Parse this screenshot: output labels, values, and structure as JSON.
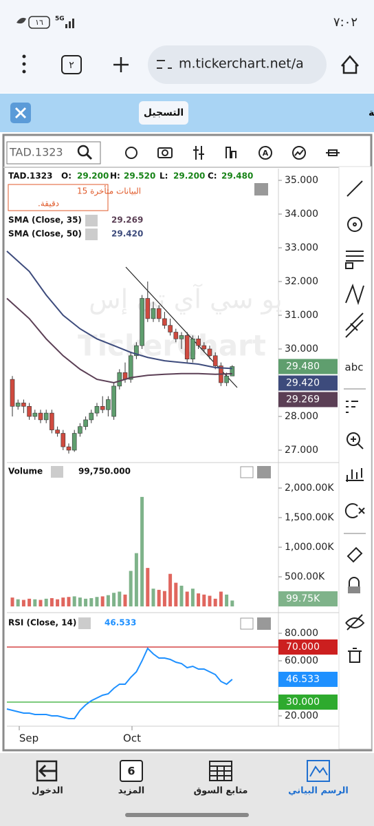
{
  "status_bar": {
    "time": "٧:٠٢",
    "battery": "١٦",
    "network": "5G"
  },
  "browser": {
    "tab_count": "٢",
    "url": "m.tickerchart.net/a"
  },
  "banner": {
    "message": "سجل مجانا لكي تحفظ رسومك الفنية",
    "button": "التسجيل"
  },
  "toolbar": {
    "symbol": "TAD.1323",
    "abc": "abc"
  },
  "watermark": [
    "يو سي آي تي إس",
    "TickerChart"
  ],
  "price_pane": {
    "symbol": "TAD.1323",
    "open_label": "O:",
    "open": "29.200",
    "high_label": "H:",
    "high": "29.520",
    "low_label": "L:",
    "low": "29.200",
    "close_label": "C:",
    "close": "29.480",
    "delay_notice": [
      "البيانات متأخرة 15",
      "دقيقة."
    ],
    "sma35_label": "SMA  (Close, 35)",
    "sma35_value": "29.269",
    "sma50_label": "SMA  (Close, 50)",
    "sma50_value": "29.420",
    "ticks": [
      {
        "value": 35,
        "label": "35.000"
      },
      {
        "value": 34,
        "label": "34.000"
      },
      {
        "value": 33,
        "label": "33.000"
      },
      {
        "value": 32,
        "label": "32.000"
      },
      {
        "value": 31,
        "label": "31.000"
      },
      {
        "value": 30,
        "label": "30.000"
      },
      {
        "value": 28,
        "label": "28.000"
      },
      {
        "value": 27,
        "label": "27.000"
      }
    ],
    "tags": [
      {
        "value": 29.48,
        "label": "29.480",
        "color": "#5f9e6e"
      },
      {
        "value": 29.42,
        "label": "29.420",
        "color": "#3d4b7c"
      },
      {
        "value": 29.269,
        "label": "29.269",
        "color": "#5b3f55"
      }
    ],
    "candles": [
      [
        29.1,
        29.2,
        28.0,
        28.3
      ],
      [
        28.3,
        28.5,
        28.2,
        28.4
      ],
      [
        28.4,
        28.5,
        28.1,
        28.3
      ],
      [
        28.3,
        28.4,
        27.9,
        28.0
      ],
      [
        28.0,
        28.2,
        27.9,
        28.1
      ],
      [
        28.1,
        28.2,
        27.8,
        27.9
      ],
      [
        27.9,
        28.2,
        27.8,
        28.1
      ],
      [
        28.1,
        28.2,
        27.5,
        27.6
      ],
      [
        27.6,
        27.7,
        27.4,
        27.5
      ],
      [
        27.5,
        27.6,
        27.0,
        27.1
      ],
      [
        27.1,
        27.2,
        26.9,
        27.0
      ],
      [
        27.0,
        27.6,
        26.95,
        27.5
      ],
      [
        27.5,
        27.8,
        27.4,
        27.7
      ],
      [
        27.7,
        28.0,
        27.6,
        27.9
      ],
      [
        27.9,
        28.2,
        27.8,
        28.1
      ],
      [
        28.1,
        28.4,
        28.0,
        28.3
      ],
      [
        28.3,
        28.6,
        28.1,
        28.2
      ],
      [
        28.2,
        28.6,
        28.0,
        28.5
      ],
      [
        28.0,
        29.0,
        27.9,
        28.9
      ],
      [
        28.9,
        29.4,
        28.8,
        29.3
      ],
      [
        29.3,
        29.6,
        29.0,
        29.1
      ],
      [
        29.1,
        29.9,
        29.0,
        29.8
      ],
      [
        29.8,
        30.2,
        29.7,
        30.1
      ],
      [
        30.1,
        31.6,
        30.0,
        31.5
      ],
      [
        31.5,
        32.0,
        30.8,
        30.9
      ],
      [
        30.9,
        31.4,
        30.8,
        31.2
      ],
      [
        31.2,
        31.3,
        30.8,
        30.9
      ],
      [
        30.9,
        31.1,
        30.6,
        30.7
      ],
      [
        30.7,
        30.9,
        30.4,
        30.5
      ],
      [
        30.5,
        30.6,
        30.2,
        30.3
      ],
      [
        30.3,
        30.5,
        30.0,
        30.4
      ],
      [
        30.4,
        30.5,
        29.6,
        29.7
      ],
      [
        29.7,
        30.4,
        29.6,
        30.3
      ],
      [
        30.3,
        30.4,
        30.0,
        30.1
      ],
      [
        30.1,
        30.2,
        29.9,
        30.0
      ],
      [
        30.0,
        30.1,
        29.7,
        29.8
      ],
      [
        29.8,
        29.9,
        29.4,
        29.5
      ],
      [
        29.5,
        29.6,
        28.9,
        29.0
      ],
      [
        29.0,
        29.3,
        28.9,
        29.2
      ],
      [
        29.2,
        29.52,
        29.2,
        29.48
      ]
    ],
    "sma35": {
      "color": "#5b3f55",
      "values": [
        31.5,
        30.9,
        30.3,
        29.8,
        29.4,
        29.1,
        29.0,
        29.15,
        29.22,
        29.25,
        29.27,
        29.27,
        29.25,
        29.269
      ]
    },
    "sma50": {
      "color": "#3d4b7c",
      "values": [
        32.9,
        32.3,
        31.6,
        31.0,
        30.6,
        30.3,
        30.1,
        29.9,
        29.75,
        29.65,
        29.6,
        29.55,
        29.45,
        29.42
      ]
    }
  },
  "volume_pane": {
    "label": "Volume",
    "value": "99,750.000",
    "ticks": [
      {
        "value": 2000000,
        "label": "2,000.00K"
      },
      {
        "value": 1500000,
        "label": "1,500.00K"
      },
      {
        "value": 1000000,
        "label": "1,000.00K"
      },
      {
        "value": 500000,
        "label": "500.00K"
      }
    ],
    "tag": {
      "value": 99750,
      "label": "99.75K",
      "color": "#7fb38a"
    },
    "values": [
      150000,
      120000,
      110000,
      130000,
      120000,
      110000,
      130000,
      140000,
      120000,
      150000,
      160000,
      170000,
      150000,
      130000,
      140000,
      160000,
      170000,
      190000,
      230000,
      250000,
      200000,
      600000,
      900000,
      1850000,
      650000,
      300000,
      280000,
      260000,
      550000,
      400000,
      350000,
      250000,
      300000,
      220000,
      200000,
      180000,
      130000,
      250000,
      200000,
      99750
    ]
  },
  "rsi_pane": {
    "label": "RSI  (Close, 14)",
    "value": "46.533",
    "ticks": [
      {
        "value": 80,
        "label": "80.000"
      },
      {
        "value": 60,
        "label": "60.000"
      },
      {
        "value": 20,
        "label": "20.000"
      }
    ],
    "levels": [
      {
        "value": 70,
        "label": "70.000",
        "color": "#cc1f1f"
      },
      {
        "value": 30,
        "label": "30.000",
        "color": "#2eaa2e"
      }
    ],
    "tag": {
      "value": 46.533,
      "label": "46.533",
      "color": "#1e90ff"
    },
    "values": [
      25,
      23,
      22,
      22,
      21,
      21,
      21,
      20,
      20,
      19,
      18,
      18,
      24,
      28,
      31,
      33,
      35,
      36,
      40,
      43,
      43,
      48,
      52,
      60,
      69,
      65,
      62,
      62,
      61,
      59,
      58,
      55,
      56,
      54,
      54,
      52,
      50,
      45,
      43,
      46.533
    ]
  },
  "time_axis": [
    "Sep",
    "Oct"
  ],
  "bottom_nav": {
    "items": [
      "الدخول",
      "المزيد",
      "متابع السوق",
      "الرسم البياني"
    ],
    "more_badge": "6"
  }
}
